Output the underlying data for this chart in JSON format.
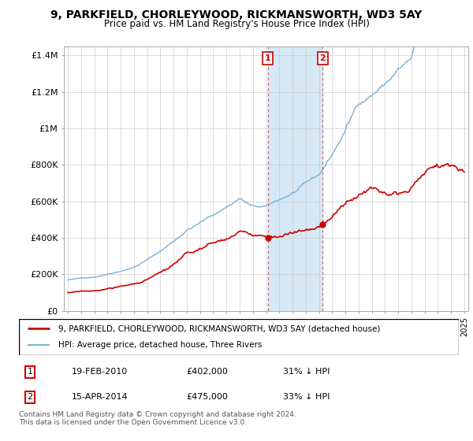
{
  "title": "9, PARKFIELD, CHORLEYWOOD, RICKMANSWORTH, WD3 5AY",
  "subtitle": "Price paid vs. HM Land Registry's House Price Index (HPI)",
  "legend_line1": "9, PARKFIELD, CHORLEYWOOD, RICKMANSWORTH, WD3 5AY (detached house)",
  "legend_line2": "HPI: Average price, detached house, Three Rivers",
  "annotation1_date": "19-FEB-2010",
  "annotation1_price": "£402,000",
  "annotation1_hpi": "31% ↓ HPI",
  "annotation2_date": "15-APR-2014",
  "annotation2_price": "£475,000",
  "annotation2_hpi": "33% ↓ HPI",
  "footer": "Contains HM Land Registry data © Crown copyright and database right 2024.\nThis data is licensed under the Open Government Licence v3.0.",
  "house_color": "#cc0000",
  "hpi_color": "#7ab0d4",
  "annotation_box_color": "#cc0000",
  "shaded_region_color": "#d6e8f5",
  "yticks": [
    0,
    200000,
    400000,
    600000,
    800000,
    1000000,
    1200000,
    1400000
  ],
  "ytick_labels": [
    "£0",
    "£200K",
    "£400K",
    "£600K",
    "£800K",
    "£1M",
    "£1.2M",
    "£1.4M"
  ],
  "ylim_max": 1450000,
  "t_sale1": 2010.12,
  "t_sale2": 2014.29,
  "price_sale1": 402000,
  "price_sale2": 475000,
  "hpi_ratio1": 0.69,
  "hpi_ratio2": 0.67
}
